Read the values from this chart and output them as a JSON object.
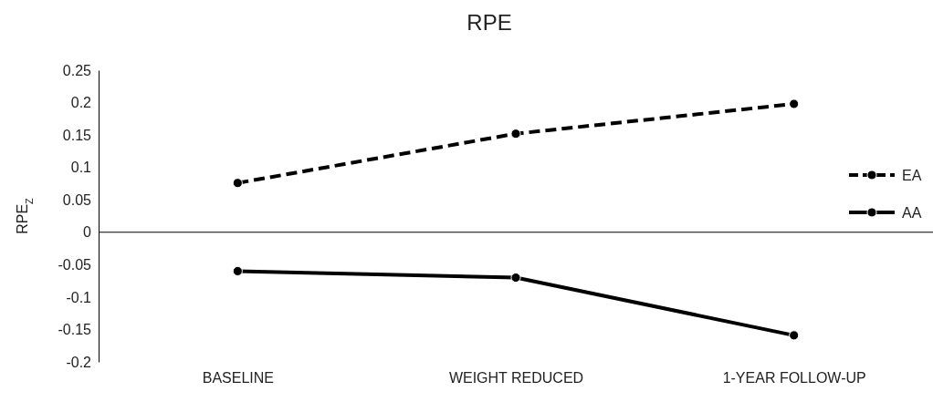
{
  "chart_data": {
    "type": "line",
    "title": "RPE",
    "ylabel": "RPE$_{Z}$",
    "categories": [
      "BASELINE",
      "WEIGHT REDUCED",
      "1-YEAR FOLLOW-UP"
    ],
    "series": [
      {
        "name": "EA",
        "color": "#000000",
        "line_style": "dashed",
        "values": [
          0.076,
          0.152,
          0.198
        ]
      },
      {
        "name": "AA",
        "color": "#000000",
        "line_style": "solid",
        "values": [
          -0.06,
          -0.07,
          -0.159
        ]
      }
    ],
    "ylim": [
      -0.2,
      0.25
    ],
    "yticks": [
      -0.2,
      -0.15,
      -0.1,
      -0.05,
      0,
      0.05,
      0.1,
      0.15,
      0.2,
      0.25
    ],
    "marker": "circle",
    "legend": "right"
  }
}
